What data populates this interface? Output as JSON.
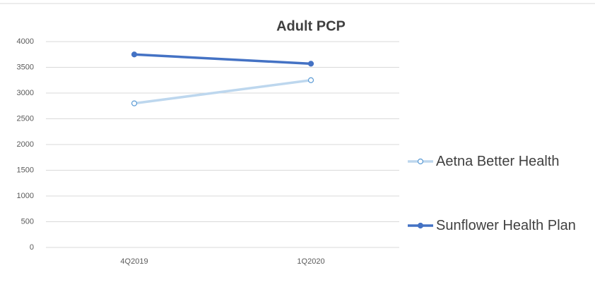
{
  "chart_data": {
    "type": "line",
    "title": "Adult PCP",
    "categories": [
      "4Q2019",
      "1Q2020"
    ],
    "series": [
      {
        "name": "Aetna Better Health",
        "color": "#bdd7ee",
        "marker": "open",
        "values": [
          2800,
          3250
        ]
      },
      {
        "name": "Sunflower Health Plan",
        "color": "#4472c4",
        "marker": "filled",
        "values": [
          3750,
          3570
        ]
      }
    ],
    "ylim": [
      0,
      4000
    ],
    "yticks": [
      0,
      500,
      1000,
      1500,
      2000,
      2500,
      3000,
      3500,
      4000
    ],
    "grid": true,
    "legend": "right"
  }
}
